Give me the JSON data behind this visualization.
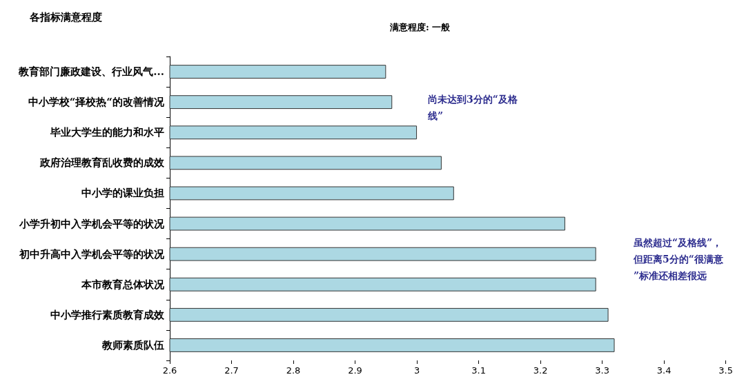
{
  "chart_data": {
    "type": "bar",
    "orientation": "horizontal",
    "title": "各指标满意程度",
    "subtitle": "满意程度: 一般",
    "categories": [
      "教育部门廉政建设、行业风气...",
      "中小学校“择校热“的改善情况",
      "毕业大学生的能力和水平",
      "政府治理教育乱收费的成效",
      "中小学的课业负担",
      "小学升初中入学机会平等的状况",
      "初中升高中入学机会平等的状况",
      "本市教育总体状况",
      "中小学推行素质教育成效",
      "教师素质队伍"
    ],
    "values": [
      2.95,
      2.96,
      3.0,
      3.04,
      3.06,
      3.24,
      3.29,
      3.29,
      3.31,
      3.32
    ],
    "color": "#acd8e3",
    "xlim": [
      2.6,
      3.5
    ],
    "xticks": [
      2.6,
      2.7,
      2.8,
      2.9,
      3,
      3.1,
      3.2,
      3.3,
      3.4,
      3.5
    ],
    "grid": false,
    "annotations": [
      "尚未达到3分的“及格线”",
      "虽然超过“及格线”，但距离5分的“很满意”标准还相差很远"
    ]
  }
}
